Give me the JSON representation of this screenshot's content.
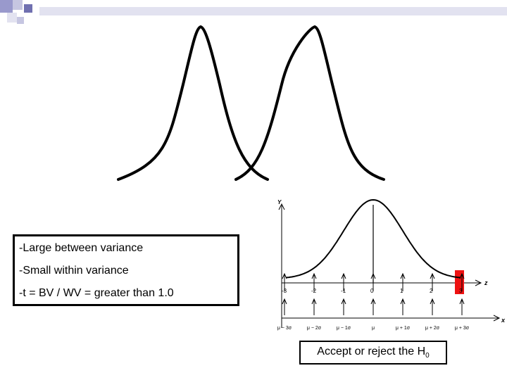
{
  "slide": {
    "decoration": {
      "colors": [
        "#9999CC",
        "#C6C6E1",
        "#E2E2F0",
        "#7070B0"
      ]
    },
    "curves": {
      "stroke": "#000000"
    },
    "info_box": {
      "lines": [
        "-Large between variance",
        "-Small within variance",
        "-t = BV / WV = greater than 1.0"
      ]
    },
    "normal_chart": {
      "y_label": "Y",
      "z_label": "z",
      "x_label": "x",
      "z_ticks": [
        "-3",
        "-2",
        "-1",
        "0",
        "1",
        "2",
        "3"
      ],
      "x_ticks": [
        "μ − 3σ",
        "μ − 2σ",
        "μ − 1σ",
        "μ",
        "μ + 1σ",
        "μ + 2σ",
        "μ + 3σ"
      ],
      "highlight_color": "#EE1111",
      "highlight_z": 3
    },
    "decision": {
      "text": "Accept or reject the H",
      "subscript": "0"
    }
  }
}
